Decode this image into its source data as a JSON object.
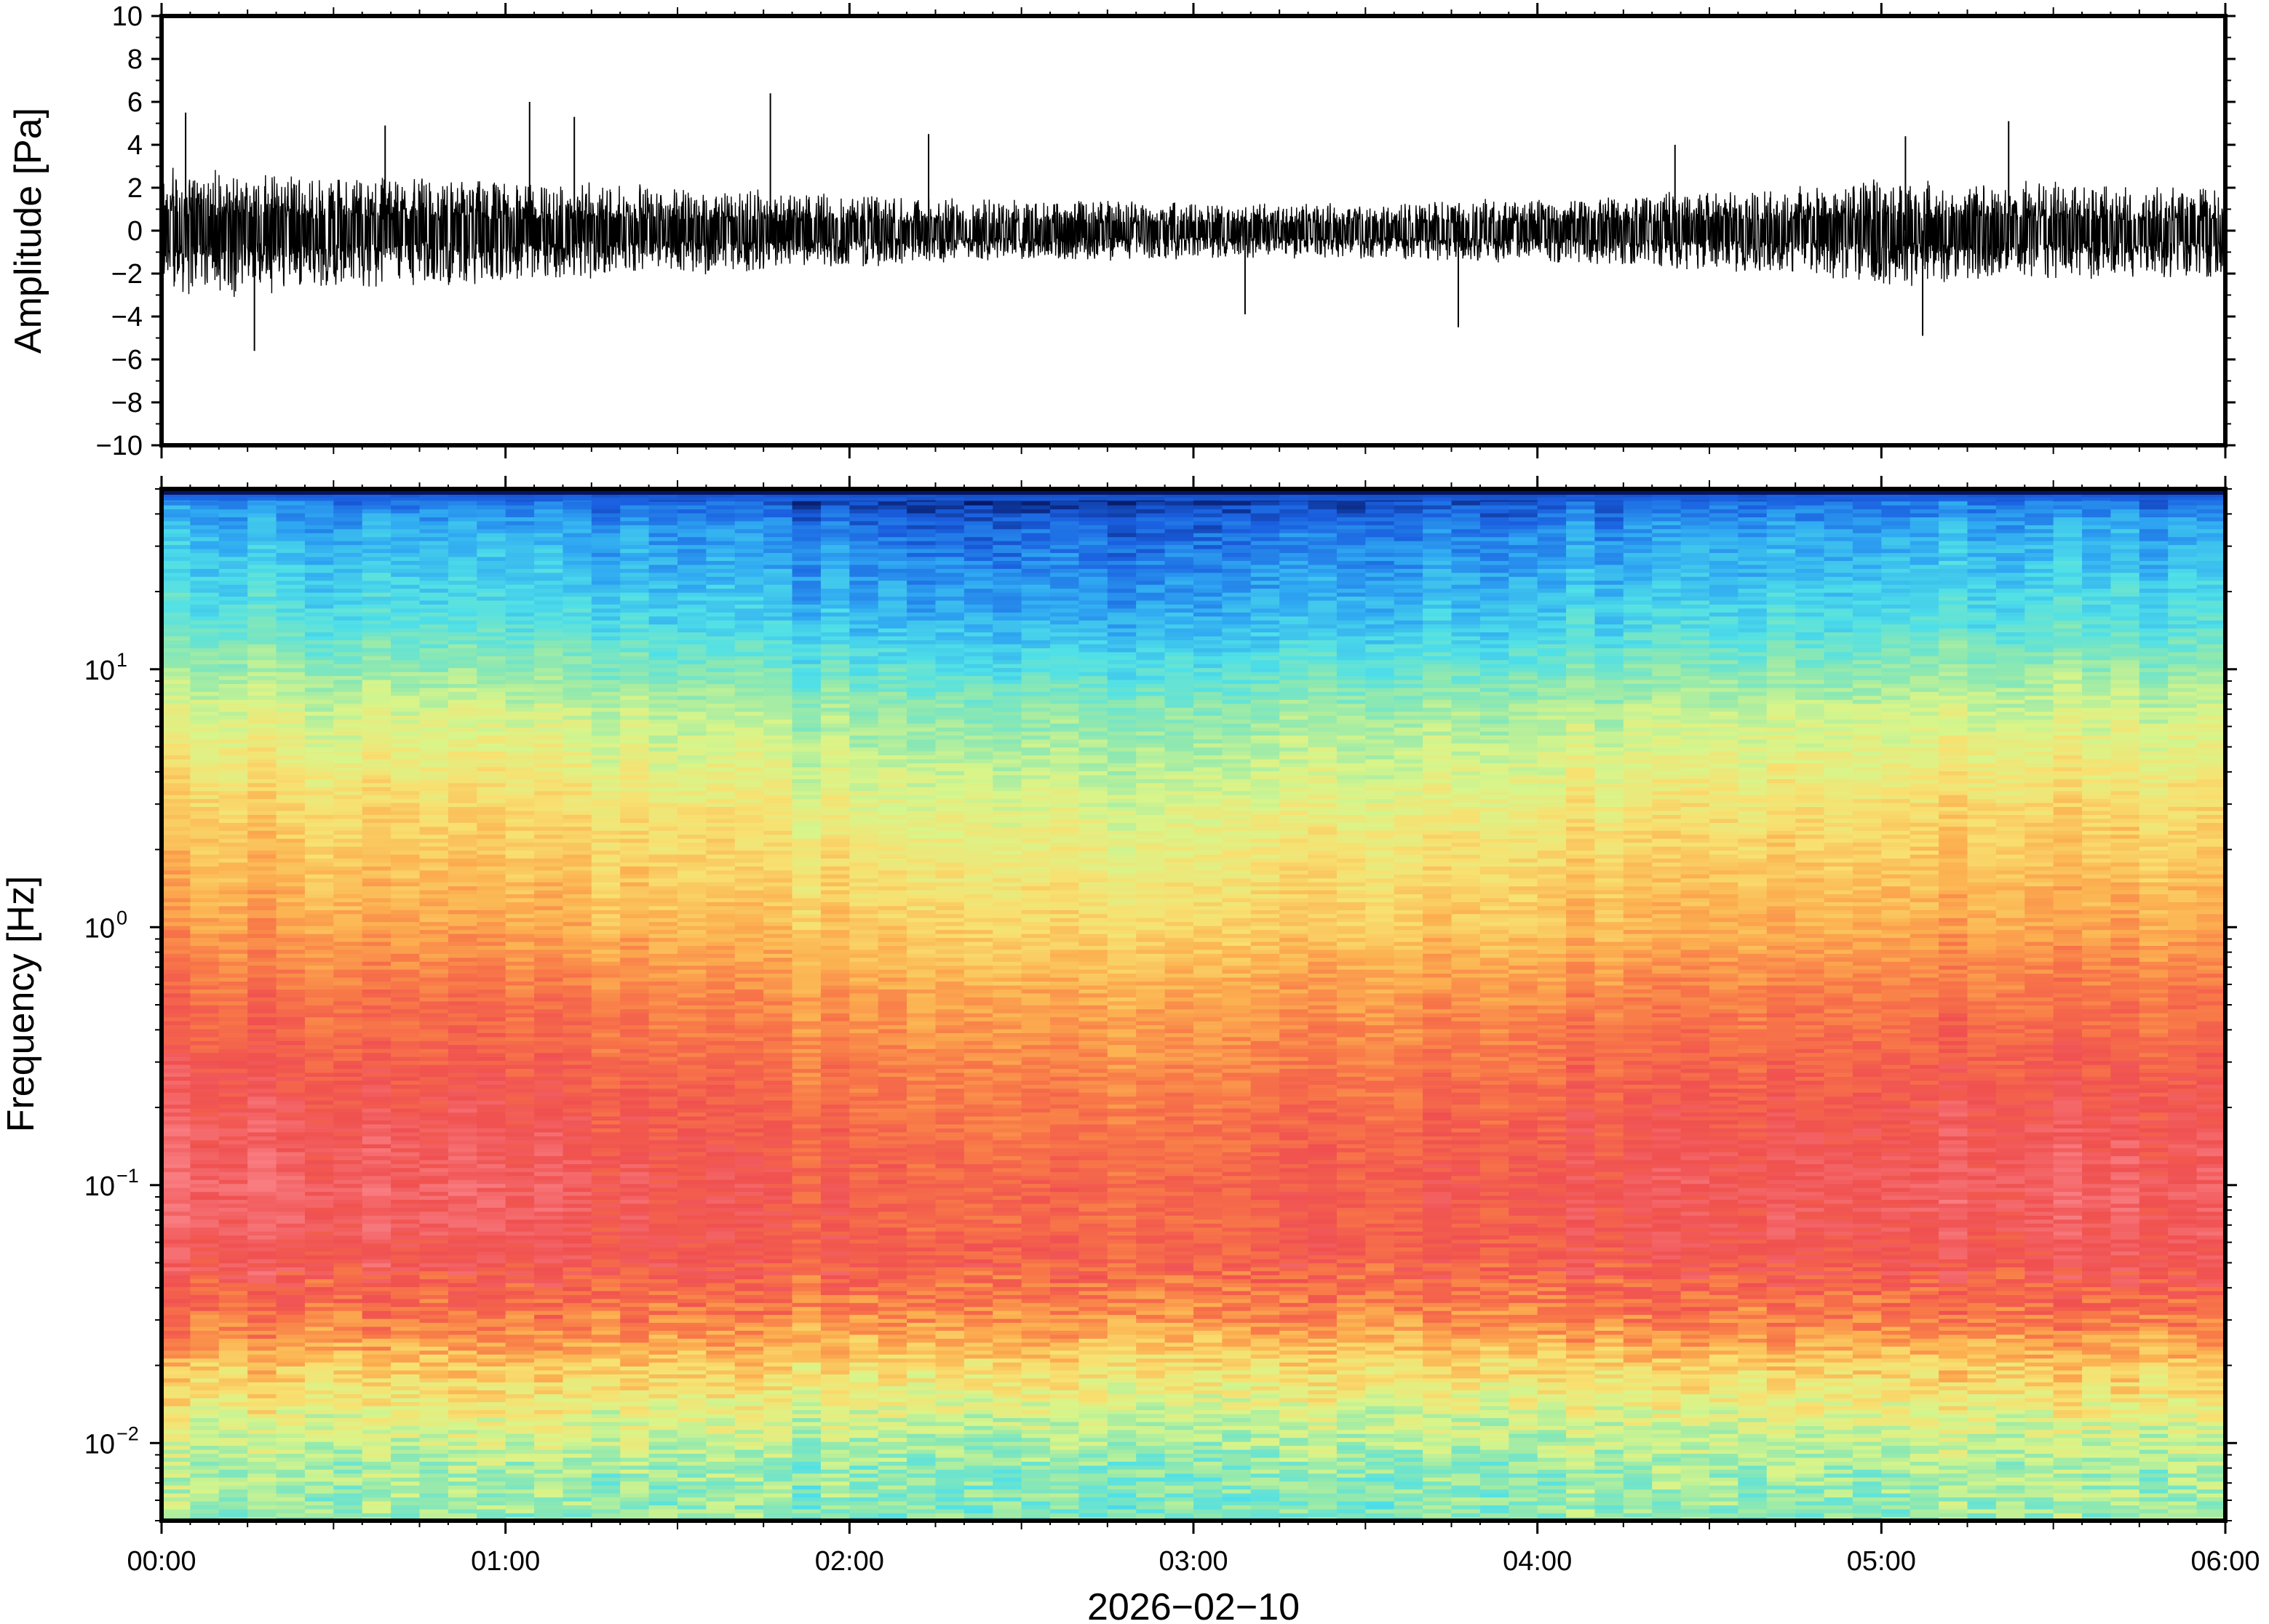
{
  "chart_data": [
    {
      "type": "line",
      "panel": "waveform",
      "ylabel": "Amplitude [Pa]",
      "ylim": [
        -10,
        10
      ],
      "yticks": [
        10,
        8,
        6,
        4,
        2,
        0,
        -2,
        -4,
        -6,
        -8,
        -10
      ],
      "ytick_labels": [
        "10",
        "8",
        "6",
        "4",
        "2",
        "0",
        "−2",
        "−4",
        "−6",
        "−8",
        "−10"
      ],
      "xlim": [
        "00:00",
        "06:00"
      ],
      "grid": false,
      "series_color": "#000000",
      "envelope": {
        "x_hours": [
          0.0,
          0.25,
          0.5,
          0.75,
          1.0,
          1.25,
          1.5,
          1.75,
          2.0,
          2.25,
          2.5,
          2.75,
          3.0,
          3.25,
          3.5,
          3.75,
          4.0,
          4.25,
          4.5,
          4.75,
          5.0,
          5.25,
          5.5,
          5.75,
          6.0
        ],
        "upper_typical_pa": [
          2.4,
          2.1,
          2.0,
          1.9,
          1.8,
          1.7,
          1.6,
          1.5,
          1.3,
          1.2,
          1.1,
          1.1,
          1.0,
          1.0,
          1.0,
          1.1,
          1.2,
          1.3,
          1.4,
          1.6,
          1.9,
          1.8,
          1.7,
          1.6,
          1.6
        ],
        "lower_typical_pa": [
          -2.5,
          -2.3,
          -2.1,
          -2.0,
          -1.9,
          -1.7,
          -1.6,
          -1.5,
          -1.3,
          -1.2,
          -1.1,
          -1.1,
          -1.0,
          -1.0,
          -1.0,
          -1.1,
          -1.2,
          -1.3,
          -1.4,
          -1.6,
          -2.0,
          -1.9,
          -1.8,
          -1.7,
          -1.7
        ]
      },
      "peaks": [
        {
          "x_hours": 0.07,
          "y": 5.5
        },
        {
          "x_hours": 0.27,
          "y": -5.6
        },
        {
          "x_hours": 0.65,
          "y": 4.9
        },
        {
          "x_hours": 1.07,
          "y": 6.0
        },
        {
          "x_hours": 1.2,
          "y": 5.3
        },
        {
          "x_hours": 1.77,
          "y": 6.4
        },
        {
          "x_hours": 2.23,
          "y": 4.5
        },
        {
          "x_hours": 3.15,
          "y": -3.9
        },
        {
          "x_hours": 3.77,
          "y": -4.5
        },
        {
          "x_hours": 4.4,
          "y": 4.0
        },
        {
          "x_hours": 5.07,
          "y": 4.4
        },
        {
          "x_hours": 5.12,
          "y": -4.9
        },
        {
          "x_hours": 5.37,
          "y": 5.1
        }
      ]
    },
    {
      "type": "heatmap",
      "panel": "spectrogram",
      "ylabel": "Frequency [Hz]",
      "yscale": "log",
      "ylim": [
        0.005,
        50
      ],
      "yticks": [
        0.01,
        0.1,
        1,
        10
      ],
      "ytick_labels": [
        {
          "base": "10",
          "exp": "−2"
        },
        {
          "base": "10",
          "exp": "−1"
        },
        {
          "base": "10",
          "exp": "0"
        },
        {
          "base": "10",
          "exp": "1"
        }
      ],
      "xlabel": "2026−02−10",
      "xlim": [
        "00:00",
        "06:00"
      ],
      "xticks": [
        "00:00",
        "01:00",
        "02:00",
        "03:00",
        "04:00",
        "05:00",
        "06:00"
      ],
      "colormap": [
        "#051560",
        "#1a5fe0",
        "#2fa8f2",
        "#4fe0e8",
        "#8ee8b0",
        "#d8f58a",
        "#f8e070",
        "#fcb050",
        "#f87848",
        "#f05050",
        "#f87c80"
      ],
      "relative_level_by_frequency_hz": [
        {
          "f": 50,
          "level": 0.0
        },
        {
          "f": 45,
          "level": 0.1
        },
        {
          "f": 35,
          "level": 0.17
        },
        {
          "f": 15,
          "level": 0.28
        },
        {
          "f": 7,
          "level": 0.45
        },
        {
          "f": 3,
          "level": 0.57
        },
        {
          "f": 1.0,
          "level": 0.68
        },
        {
          "f": 0.5,
          "level": 0.78
        },
        {
          "f": 0.2,
          "level": 0.86
        },
        {
          "f": 0.1,
          "level": 0.9
        },
        {
          "f": 0.05,
          "level": 0.88
        },
        {
          "f": 0.03,
          "level": 0.78
        },
        {
          "f": 0.02,
          "level": 0.63
        },
        {
          "f": 0.012,
          "level": 0.5
        },
        {
          "f": 0.008,
          "level": 0.42
        },
        {
          "f": 0.005,
          "level": 0.4
        }
      ],
      "time_variation_hours": [
        {
          "x_hours": 0.0,
          "offset": 0.06
        },
        {
          "x_hours": 1.0,
          "offset": 0.04
        },
        {
          "x_hours": 2.0,
          "offset": -0.04
        },
        {
          "x_hours": 2.5,
          "offset": -0.07
        },
        {
          "x_hours": 3.0,
          "offset": -0.05
        },
        {
          "x_hours": 4.0,
          "offset": 0.0
        },
        {
          "x_hours": 5.0,
          "offset": 0.05
        },
        {
          "x_hours": 6.0,
          "offset": 0.03
        }
      ]
    }
  ]
}
